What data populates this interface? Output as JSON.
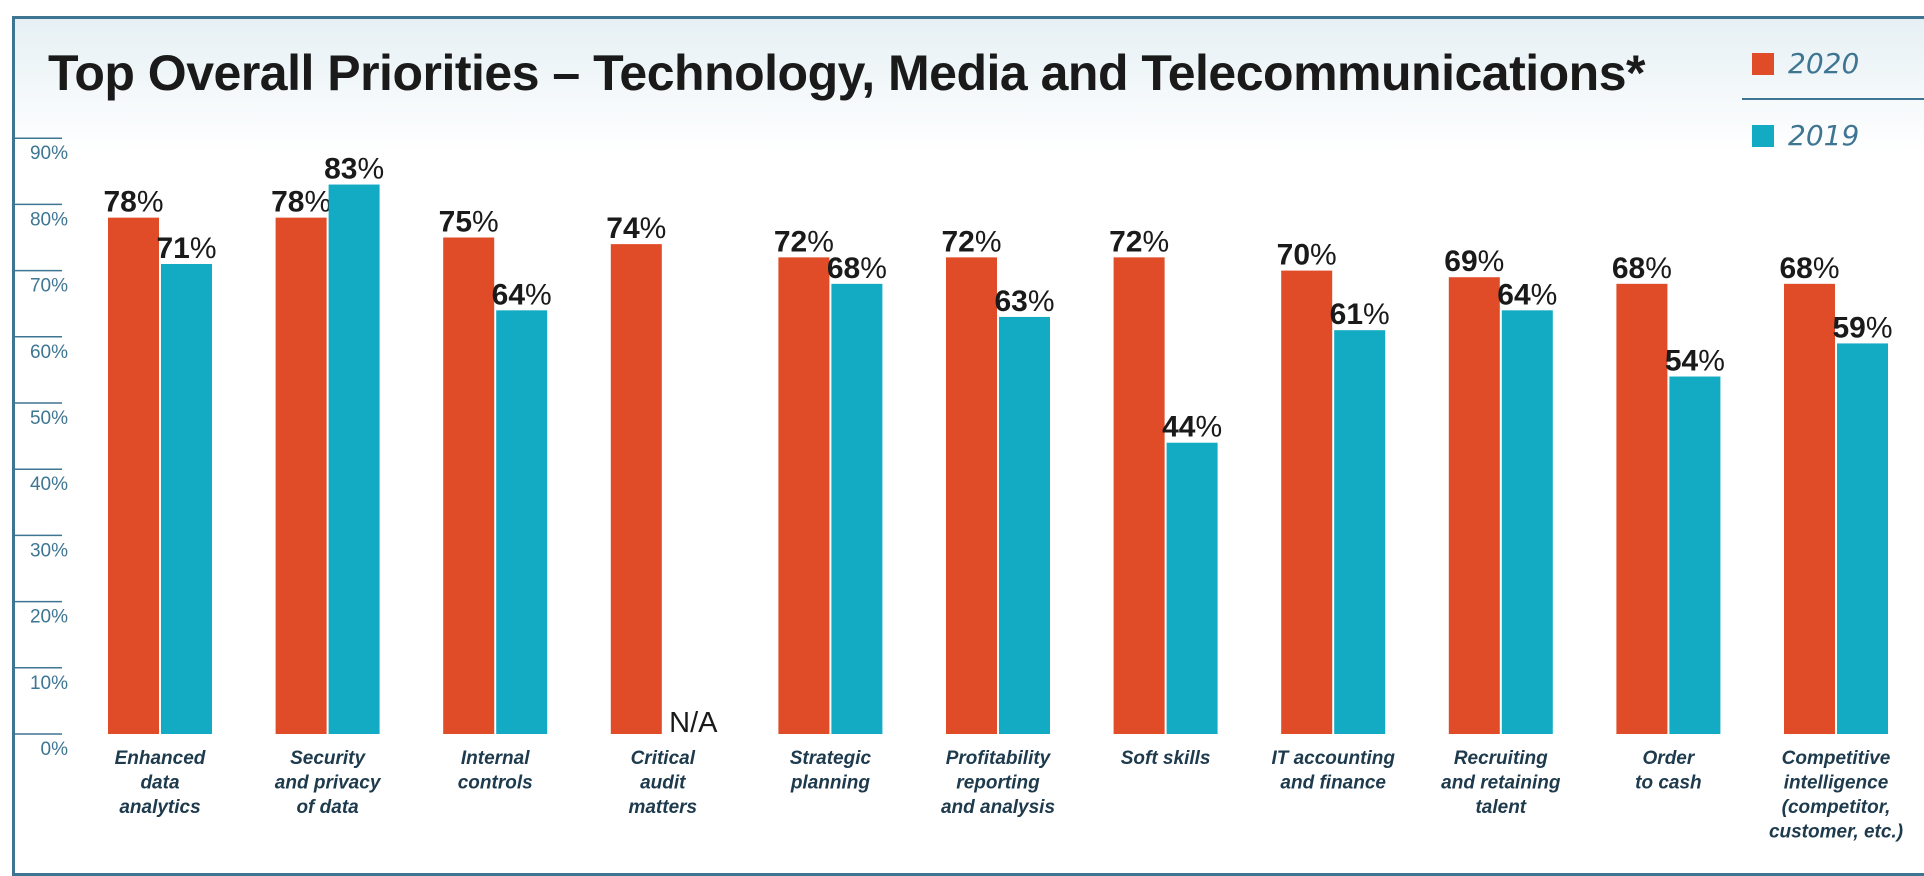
{
  "chart_data": {
    "type": "bar",
    "title": "Top Overall Priorities – Technology, Media and Telecommunications*",
    "xlabel": "",
    "ylabel": "",
    "ylim": [
      0,
      90
    ],
    "yticks": [
      "0%",
      "10%",
      "20%",
      "30%",
      "40%",
      "50%",
      "60%",
      "70%",
      "80%",
      "90%"
    ],
    "categories": [
      [
        "Enhanced",
        "data",
        "analytics"
      ],
      [
        "Security",
        "and privacy",
        "of data"
      ],
      [
        "Internal",
        "controls"
      ],
      [
        "Critical",
        "audit",
        "matters"
      ],
      [
        "Strategic",
        "planning"
      ],
      [
        "Profitability",
        "reporting",
        "and analysis"
      ],
      [
        "Soft skills"
      ],
      [
        "IT accounting",
        "and finance"
      ],
      [
        "Recruiting",
        "and retaining",
        "talent"
      ],
      [
        "Order",
        "to cash"
      ],
      [
        "Competitive",
        "intelligence",
        "(competitor,",
        "customer, etc.)"
      ]
    ],
    "series": [
      {
        "name": "2020",
        "color": "#e04b28",
        "values": [
          78,
          78,
          75,
          74,
          72,
          72,
          72,
          70,
          69,
          68,
          68
        ],
        "labels": [
          "78%",
          "78%",
          "75%",
          "74%",
          "72%",
          "72%",
          "72%",
          "70%",
          "69%",
          "68%",
          "68%"
        ]
      },
      {
        "name": "2019",
        "color": "#13abc4",
        "values": [
          71,
          83,
          64,
          null,
          68,
          63,
          44,
          61,
          64,
          54,
          59
        ],
        "labels": [
          "71%",
          "83%",
          "64%",
          "N/A",
          "68%",
          "63%",
          "44%",
          "61%",
          "64%",
          "54%",
          "59%"
        ]
      }
    ],
    "legend": "top-right",
    "grid": false
  }
}
